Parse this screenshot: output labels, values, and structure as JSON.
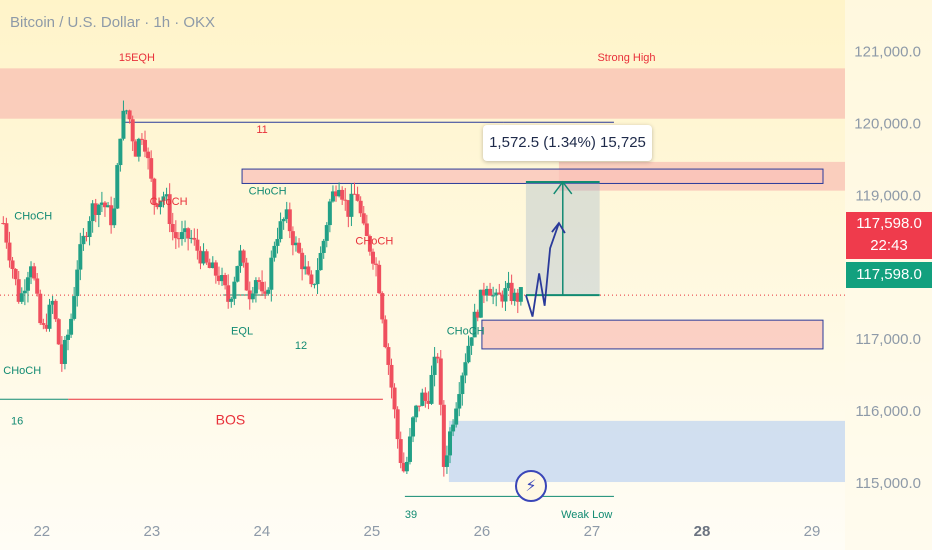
{
  "title": "Bitcoin / U.S. Dollar · 1h · OKX",
  "colors": {
    "up": "#22a086",
    "down": "#ef4f5e",
    "bg_top": "#fff4c9",
    "bg_bottom": "#fffdf6",
    "supply_zone": "#f7b3ab",
    "demand_zone": "#b8d0f1",
    "line_blue": "#2a3a9a",
    "line_red": "#e8303a",
    "line_green": "#118a72"
  },
  "price_tags": {
    "last_price": "117,598.0",
    "countdown": "22:43",
    "current_price": "117,598.0"
  },
  "measure_label": "1,572.5 (1.34%) 15,725",
  "lightning_icon": "lightning-icon",
  "chart_data": {
    "type": "candlestick",
    "symbol": "Bitcoin / U.S. Dollar",
    "interval": "1h",
    "exchange": "OKX",
    "ylim": [
      114500,
      121700
    ],
    "y_ticks": [
      121000,
      120000,
      119000,
      118000,
      117000,
      116000,
      115000
    ],
    "y_tick_labels": [
      "121,000.0",
      "120,000.0",
      "119,000.0",
      "",
      "117,000.0",
      "116,000.0",
      "115,000.0"
    ],
    "x_ticks": [
      "22",
      "23",
      "24",
      "25",
      "26",
      "27",
      "28",
      "29"
    ],
    "x_tick_values": [
      0,
      1,
      2,
      3,
      4,
      5,
      6,
      7
    ],
    "xlim": [
      -0.38,
      7.3
    ],
    "last_price": 117598,
    "anchors": [
      [
        -0.35,
        118600
      ],
      [
        -0.2,
        117500
      ],
      [
        -0.1,
        118100
      ],
      [
        0.0,
        117050
      ],
      [
        0.1,
        117500
      ],
      [
        0.18,
        116650
      ],
      [
        0.26,
        117200
      ],
      [
        0.32,
        118000
      ],
      [
        0.45,
        118800
      ],
      [
        0.55,
        118900
      ],
      [
        0.65,
        118600
      ],
      [
        0.72,
        120000
      ],
      [
        0.78,
        120200
      ],
      [
        0.85,
        119600
      ],
      [
        0.92,
        119900
      ],
      [
        1.02,
        118900
      ],
      [
        1.12,
        119000
      ],
      [
        1.2,
        118400
      ],
      [
        1.35,
        118400
      ],
      [
        1.5,
        118000
      ],
      [
        1.62,
        117850
      ],
      [
        1.7,
        117500
      ],
      [
        1.8,
        118200
      ],
      [
        1.88,
        117600
      ],
      [
        1.96,
        117900
      ],
      [
        2.02,
        117400
      ],
      [
        2.12,
        118400
      ],
      [
        2.22,
        118700
      ],
      [
        2.3,
        118300
      ],
      [
        2.38,
        118000
      ],
      [
        2.45,
        117650
      ],
      [
        2.55,
        118250
      ],
      [
        2.62,
        118900
      ],
      [
        2.7,
        119200
      ],
      [
        2.78,
        118750
      ],
      [
        2.86,
        119050
      ],
      [
        2.92,
        118500
      ],
      [
        3.0,
        118200
      ],
      [
        3.05,
        117950
      ],
      [
        3.12,
        117000
      ],
      [
        3.18,
        116300
      ],
      [
        3.25,
        115400
      ],
      [
        3.3,
        115100
      ],
      [
        3.38,
        115900
      ],
      [
        3.45,
        116200
      ],
      [
        3.5,
        116100
      ],
      [
        3.55,
        116500
      ],
      [
        3.6,
        116800
      ],
      [
        3.65,
        115200
      ],
      [
        3.7,
        115600
      ],
      [
        3.75,
        116000
      ],
      [
        3.8,
        116400
      ],
      [
        3.86,
        116800
      ],
      [
        3.92,
        117200
      ],
      [
        3.98,
        117500
      ],
      [
        4.05,
        117800
      ],
      [
        4.12,
        117500
      ],
      [
        4.18,
        117600
      ],
      [
        4.24,
        117650
      ],
      [
        4.3,
        117550
      ],
      [
        4.36,
        117598
      ]
    ],
    "projection": [
      [
        4.4,
        117598
      ],
      [
        4.46,
        117300
      ],
      [
        4.52,
        117900
      ],
      [
        4.57,
        117450
      ],
      [
        4.62,
        118250
      ],
      [
        4.7,
        118600
      ]
    ],
    "levels": [
      {
        "label": "15EQH",
        "price": 120000,
        "x0": 0.75,
        "x1": 4.2,
        "color": "blue"
      },
      {
        "label": "Strong High",
        "price": 120000,
        "x0": 4.2,
        "x1": 5.2,
        "color": "blue"
      },
      {
        "label": "BOS",
        "price": 116150,
        "x0": 0.24,
        "x1": 3.1,
        "color": "red"
      },
      {
        "label": "Weak Low",
        "price": 114800,
        "x0": 3.3,
        "x1": 5.2,
        "color": "green"
      },
      {
        "label": "EQL",
        "price": 117600,
        "x0": 1.65,
        "x1": 2.05,
        "color": "green"
      },
      {
        "label": "16",
        "price": 116150,
        "x0": -0.38,
        "x1": 0.24,
        "color": "green"
      }
    ],
    "zones": [
      {
        "type": "supply",
        "x0": -0.38,
        "x1": 7.3,
        "y0": 120050,
        "y1": 120750
      },
      {
        "type": "supply",
        "x0": 4.7,
        "x1": 7.3,
        "y0": 119050,
        "y1": 119450
      },
      {
        "type": "supply_box",
        "x0": 1.82,
        "x1": 7.1,
        "y0": 119150,
        "y1": 119350
      },
      {
        "type": "supply_box",
        "x0": 4.0,
        "x1": 7.1,
        "y0": 116850,
        "y1": 117250
      },
      {
        "type": "demand",
        "x0": 3.7,
        "x1": 7.3,
        "y0": 115000,
        "y1": 115850
      }
    ],
    "annotations": [
      {
        "text": "15EQH",
        "x": 0.7,
        "y": 120850
      },
      {
        "text": "Strong High",
        "x": 5.05,
        "y": 120850
      },
      {
        "text": "11",
        "x": 1.95,
        "y": 119850
      },
      {
        "text": "CHoCH",
        "x": -0.25,
        "y": 118650
      },
      {
        "text": "CHoCH",
        "x": 0.98,
        "y": 118850
      },
      {
        "text": "CHoCH",
        "x": 1.88,
        "y": 119000
      },
      {
        "text": "CHoCH",
        "x": 2.85,
        "y": 118300
      },
      {
        "text": "CHoCH",
        "x": -0.35,
        "y": 116500
      },
      {
        "text": "CHoCH",
        "x": 3.68,
        "y": 117050
      },
      {
        "text": "EQL",
        "x": 1.72,
        "y": 117050
      },
      {
        "text": "12",
        "x": 2.3,
        "y": 116850
      },
      {
        "text": "16",
        "x": -0.28,
        "y": 115800
      },
      {
        "text": "BOS",
        "x": 1.58,
        "y": 115800
      },
      {
        "text": "39",
        "x": 3.3,
        "y": 114500
      },
      {
        "text": "Weak Low",
        "x": 4.72,
        "y": 114500
      }
    ],
    "measure": {
      "x0": 4.4,
      "x1": 5.07,
      "start_price": 117598,
      "end_price": 119171,
      "change": "1,572.5 (1.34%) 15,725"
    }
  }
}
